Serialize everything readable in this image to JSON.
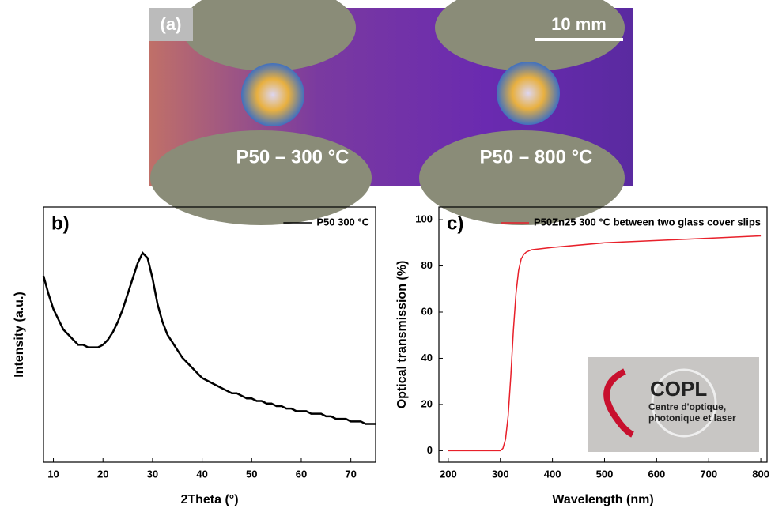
{
  "photo": {
    "label": "(a)",
    "scale_bar": "10 mm",
    "captions": [
      "P50 – 300 °C",
      "P50 – 800 °C"
    ]
  },
  "chart_data": [
    {
      "type": "line",
      "panel": "b)",
      "xlabel": "2Theta (°)",
      "ylabel": "Intensity (a.u.)",
      "x": [
        8,
        9,
        10,
        11,
        12,
        13,
        14,
        15,
        16,
        17,
        18,
        19,
        20,
        21,
        22,
        23,
        24,
        25,
        26,
        27,
        28,
        29,
        30,
        31,
        32,
        33,
        34,
        35,
        36,
        37,
        38,
        39,
        40,
        41,
        42,
        43,
        44,
        45,
        46,
        47,
        48,
        49,
        50,
        51,
        52,
        53,
        54,
        55,
        56,
        57,
        58,
        59,
        60,
        61,
        62,
        63,
        64,
        65,
        66,
        67,
        68,
        69,
        70,
        71,
        72,
        73,
        74,
        75
      ],
      "series": [
        {
          "name": "P50 300 °C",
          "color": "#000000",
          "values": [
            73,
            66,
            60,
            56,
            52,
            50,
            48,
            46,
            46,
            45,
            45,
            45,
            46,
            48,
            51,
            55,
            60,
            66,
            72,
            78,
            82,
            80,
            72,
            62,
            55,
            50,
            47,
            44,
            41,
            39,
            37,
            35,
            33,
            32,
            31,
            30,
            29,
            28,
            27,
            27,
            26,
            25,
            25,
            24,
            24,
            23,
            23,
            22,
            22,
            21,
            21,
            20,
            20,
            20,
            19,
            19,
            19,
            18,
            18,
            17,
            17,
            17,
            16,
            16,
            16,
            15,
            15,
            15
          ]
        }
      ],
      "xlim": [
        8,
        75
      ],
      "xticks": [
        10,
        20,
        30,
        40,
        50,
        60,
        70
      ],
      "ylim": [
        0,
        100
      ],
      "legend": "upper right"
    },
    {
      "type": "line",
      "panel": "c)",
      "xlabel": "Wavelength (nm)",
      "ylabel": "Optical transmission (%)",
      "x": [
        200,
        250,
        290,
        300,
        305,
        310,
        315,
        320,
        325,
        330,
        335,
        340,
        345,
        350,
        360,
        400,
        500,
        600,
        700,
        800
      ],
      "series": [
        {
          "name": "P50Zn25 300 °C between two glass cover slips",
          "color": "#e8202a",
          "values": [
            0,
            0,
            0,
            0,
            1,
            5,
            15,
            32,
            52,
            68,
            78,
            83,
            85,
            86,
            87,
            88,
            90,
            91,
            92,
            93
          ]
        }
      ],
      "xlim": [
        182,
        812
      ],
      "xticks": [
        200,
        300,
        400,
        500,
        600,
        700,
        800
      ],
      "ylim": [
        -5,
        105.5
      ],
      "yticks": [
        0,
        20,
        40,
        60,
        80,
        100
      ],
      "legend": "upper right"
    }
  ],
  "inset": {
    "logo": "COPL",
    "lines": [
      "Centre d'optique,",
      "photonique et laser"
    ]
  }
}
